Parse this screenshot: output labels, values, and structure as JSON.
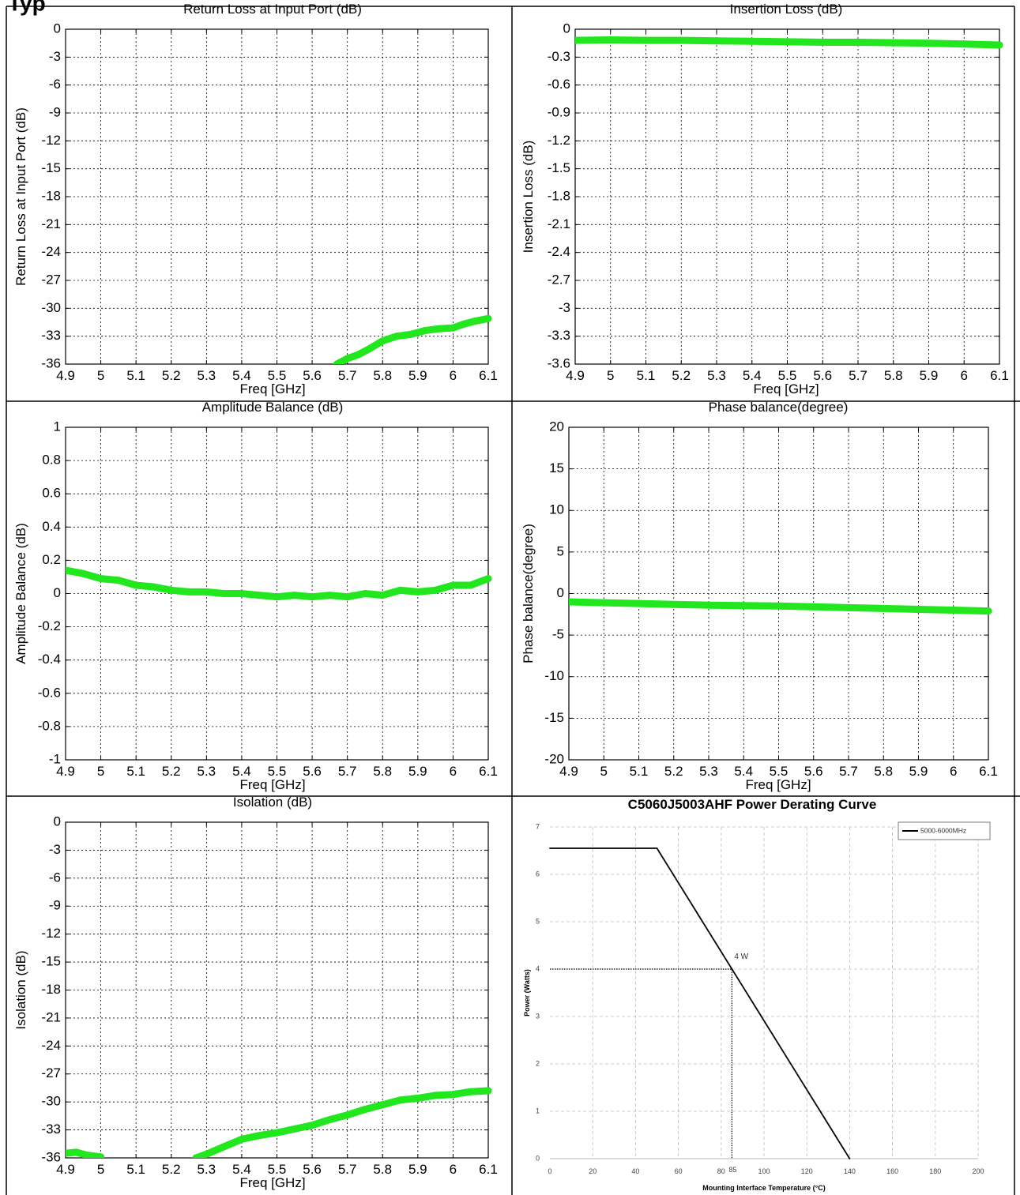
{
  "header": {
    "title_fragment": "Typ"
  },
  "chart_data": [
    {
      "id": "return-loss",
      "type": "line",
      "title": "Return Loss at Input Port (dB)",
      "xlabel": "Freq [GHz]",
      "ylabel": "Return Loss at Input Port (dB)",
      "xlim": [
        4.9,
        6.1
      ],
      "ylim": [
        -36,
        0
      ],
      "xticks": [
        "4.9",
        "5",
        "5.1",
        "5.2",
        "5.3",
        "5.4",
        "5.5",
        "5.6",
        "5.7",
        "5.8",
        "5.9",
        "6",
        "6.1"
      ],
      "yticks": [
        "0",
        "-3",
        "-6",
        "-9",
        "-12",
        "-15",
        "-18",
        "-21",
        "-24",
        "-27",
        "-30",
        "-33",
        "-36"
      ],
      "grid": true,
      "series": [
        {
          "color": "#22e61e",
          "x": [
            5.67,
            5.7,
            5.73,
            5.76,
            5.8,
            5.84,
            5.88,
            5.92,
            5.96,
            6.0,
            6.03,
            6.06,
            6.1
          ],
          "y": [
            -36,
            -35.4,
            -35.0,
            -34.4,
            -33.5,
            -33.0,
            -32.8,
            -32.4,
            -32.2,
            -32.1,
            -31.7,
            -31.4,
            -31.1
          ]
        }
      ]
    },
    {
      "id": "insertion-loss",
      "type": "line",
      "title": "Insertion Loss (dB)",
      "xlabel": "Freq [GHz]",
      "ylabel": "Insertion Loss (dB)",
      "xlim": [
        4.9,
        6.1
      ],
      "ylim": [
        -3.6,
        0
      ],
      "xticks": [
        "4.9",
        "5",
        "5.1",
        "5.2",
        "5.3",
        "5.4",
        "5.5",
        "5.6",
        "5.7",
        "5.8",
        "5.9",
        "6",
        "6.1"
      ],
      "yticks": [
        "0",
        "-0.3",
        "-0.6",
        "-0.9",
        "-1.2",
        "-1.5",
        "-1.8",
        "-2.1",
        "-2.4",
        "-2.7",
        "-3",
        "-3.3",
        "-3.6"
      ],
      "grid": true,
      "series": [
        {
          "color": "#22e61e",
          "x": [
            4.9,
            5.0,
            5.1,
            5.2,
            5.3,
            5.4,
            5.5,
            5.6,
            5.7,
            5.8,
            5.9,
            6.0,
            6.1
          ],
          "y": [
            -0.12,
            -0.115,
            -0.12,
            -0.12,
            -0.125,
            -0.13,
            -0.135,
            -0.14,
            -0.14,
            -0.145,
            -0.15,
            -0.16,
            -0.17
          ]
        }
      ]
    },
    {
      "id": "amplitude-balance",
      "type": "line",
      "title": "Amplitude Balance (dB)",
      "xlabel": "Freq [GHz]",
      "ylabel": "Amplitude Balance (dB)",
      "xlim": [
        4.9,
        6.1
      ],
      "ylim": [
        -1,
        1
      ],
      "xticks": [
        "4.9",
        "5",
        "5.1",
        "5.2",
        "5.3",
        "5.4",
        "5.5",
        "5.6",
        "5.7",
        "5.8",
        "5.9",
        "6",
        "6.1"
      ],
      "yticks": [
        "1",
        "0.8",
        "0.6",
        "0.4",
        "0.2",
        "0",
        "-0.2",
        "-0.4",
        "-0.6",
        "-0.8",
        "-1"
      ],
      "grid": true,
      "series": [
        {
          "color": "#22e61e",
          "x": [
            4.9,
            4.95,
            5.0,
            5.05,
            5.1,
            5.15,
            5.2,
            5.25,
            5.3,
            5.35,
            5.4,
            5.45,
            5.5,
            5.55,
            5.6,
            5.65,
            5.7,
            5.75,
            5.8,
            5.85,
            5.9,
            5.95,
            6.0,
            6.05,
            6.1
          ],
          "y": [
            0.14,
            0.12,
            0.09,
            0.08,
            0.05,
            0.04,
            0.02,
            0.01,
            0.01,
            0.0,
            0.0,
            -0.01,
            -0.02,
            -0.01,
            -0.02,
            -0.01,
            -0.02,
            0.0,
            -0.01,
            0.02,
            0.01,
            0.02,
            0.05,
            0.05,
            0.09
          ]
        }
      ]
    },
    {
      "id": "phase-balance",
      "type": "line",
      "title": "Phase balance(degree)",
      "xlabel": "Freq [GHz]",
      "ylabel": "Phase balance(degree)",
      "xlim": [
        4.9,
        6.1
      ],
      "ylim": [
        -20,
        20
      ],
      "xticks": [
        "4.9",
        "5",
        "5.1",
        "5.2",
        "5.3",
        "5.4",
        "5.5",
        "5.6",
        "5.7",
        "5.8",
        "5.9",
        "6",
        "6.1"
      ],
      "yticks": [
        "20",
        "15",
        "10",
        "5",
        "0",
        "-5",
        "-10",
        "-15",
        "-20"
      ],
      "grid": true,
      "series": [
        {
          "color": "#22e61e",
          "x": [
            4.9,
            5.0,
            5.1,
            5.2,
            5.3,
            5.4,
            5.5,
            5.6,
            5.7,
            5.8,
            5.9,
            6.0,
            6.1
          ],
          "y": [
            -1.0,
            -1.1,
            -1.2,
            -1.3,
            -1.4,
            -1.45,
            -1.5,
            -1.6,
            -1.7,
            -1.8,
            -1.9,
            -2.0,
            -2.1
          ]
        }
      ]
    },
    {
      "id": "isolation",
      "type": "line",
      "title": "Isolation (dB)",
      "xlabel": "Freq [GHz]",
      "ylabel": "Isolation (dB)",
      "xlim": [
        4.9,
        6.1
      ],
      "ylim": [
        -36,
        0
      ],
      "xticks": [
        "4.9",
        "5",
        "5.1",
        "5.2",
        "5.3",
        "5.4",
        "5.5",
        "5.6",
        "5.7",
        "5.8",
        "5.9",
        "6",
        "6.1"
      ],
      "yticks": [
        "0",
        "-3",
        "-6",
        "-9",
        "-12",
        "-15",
        "-18",
        "-21",
        "-24",
        "-27",
        "-30",
        "-33",
        "-36"
      ],
      "grid": true,
      "series": [
        {
          "color": "#22e61e",
          "x": [
            4.9,
            4.93,
            4.96,
            5.0
          ],
          "y": [
            -35.5,
            -35.4,
            -35.7,
            -35.9
          ]
        },
        {
          "color": "#22e61e",
          "x": [
            5.27,
            5.3,
            5.35,
            5.4,
            5.45,
            5.5,
            5.55,
            5.6,
            5.65,
            5.7,
            5.75,
            5.8,
            5.85,
            5.9,
            5.95,
            6.0,
            6.05,
            6.1
          ],
          "y": [
            -36,
            -35.6,
            -34.8,
            -34.0,
            -33.6,
            -33.3,
            -32.9,
            -32.5,
            -31.9,
            -31.4,
            -30.8,
            -30.3,
            -29.8,
            -29.6,
            -29.3,
            -29.2,
            -28.9,
            -28.8
          ]
        }
      ]
    },
    {
      "id": "power-derating",
      "type": "line",
      "title": "C5060J5003AHF Power Derating Curve",
      "xlabel": "Mounting Interface Temperature (°C)",
      "ylabel": "Power (Watts)",
      "xlim": [
        0,
        200
      ],
      "ylim": [
        0,
        7
      ],
      "xticks": [
        "0",
        "20",
        "40",
        "60",
        "80",
        "100",
        "120",
        "140",
        "160",
        "180",
        "200"
      ],
      "yticks": [
        "0",
        "1",
        "2",
        "3",
        "4",
        "5",
        "6",
        "7"
      ],
      "grid": true,
      "legend": {
        "position": "top-right",
        "entries": [
          "5000-6000MHz"
        ]
      },
      "annotation": {
        "text": "4 W",
        "x": 85,
        "y": 4,
        "x_tick_label": "85"
      },
      "series": [
        {
          "name": "5000-6000MHz",
          "color": "#000000",
          "x": [
            0,
            50,
            140
          ],
          "y": [
            6.55,
            6.55,
            0
          ]
        }
      ]
    }
  ]
}
